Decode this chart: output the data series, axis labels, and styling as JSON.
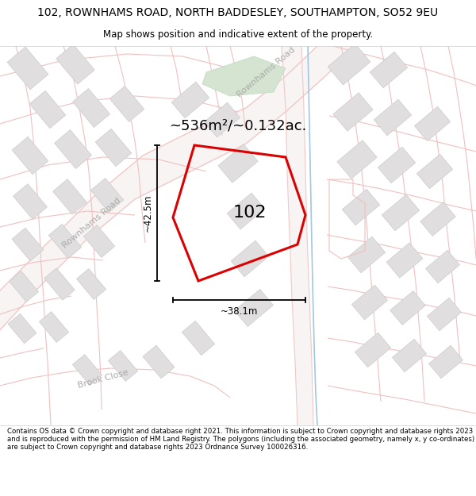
{
  "title_line1": "102, ROWNHAMS ROAD, NORTH BADDESLEY, SOUTHAMPTON, SO52 9EU",
  "title_line2": "Map shows position and indicative extent of the property.",
  "area_text": "~536m²/~0.132ac.",
  "label_102": "102",
  "dim_vertical": "~42.5m",
  "dim_horizontal": "~38.1m",
  "footer_text": "Contains OS data © Crown copyright and database right 2021. This information is subject to Crown copyright and database rights 2023 and is reproduced with the permission of HM Land Registry. The polygons (including the associated geometry, namely x, y co-ordinates) are subject to Crown copyright and database rights 2023 Ordnance Survey 100026316.",
  "bg_color": "#ffffff",
  "map_bg": "#f7f6f6",
  "road_outline_color": "#f0c8c8",
  "road_fill_color": "#faf0f0",
  "road_thin_color": "#f0c0c0",
  "plot_color": "#dd0000",
  "building_fill": "#e0dede",
  "building_edge": "#cccccc",
  "green_fill": "#d4e4d0",
  "green_edge": "#c0d8bc",
  "label_color": "#aaaaaa",
  "figsize": [
    6.0,
    6.25
  ],
  "dpi": 100,
  "title_fontsize": 10,
  "subtitle_fontsize": 8.5,
  "area_fontsize": 13,
  "num_fontsize": 16,
  "dim_fontsize": 8.5,
  "road_label_fontsize": 8,
  "footer_fontsize": 6.2
}
